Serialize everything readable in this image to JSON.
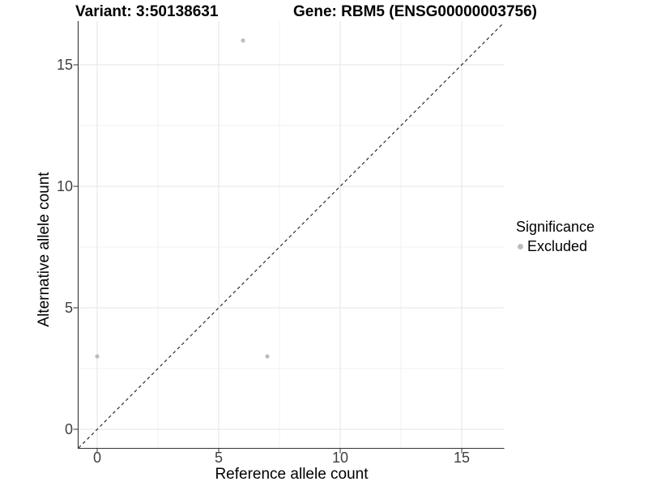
{
  "chart_data": {
    "type": "scatter",
    "title_left": "Variant: 3:50138631",
    "title_right": "Gene: RBM5 (ENSG00000003756)",
    "xlabel": "Reference allele count",
    "ylabel": "Alternative allele count",
    "xlim": [
      -0.8,
      16.8
    ],
    "ylim": [
      -0.8,
      16.8
    ],
    "x_major_ticks": [
      0,
      5,
      10,
      15
    ],
    "y_major_ticks": [
      0,
      5,
      10,
      15
    ],
    "x_minor_ticks": [
      2.5,
      7.5,
      12.5
    ],
    "y_minor_ticks": [
      2.5,
      7.5,
      12.5
    ],
    "grid": "major+minor",
    "legend_position": "right",
    "legend_title": "Significance",
    "series": [
      {
        "name": "Excluded",
        "color": "#bdbdbd",
        "marker": "circle",
        "points": [
          [
            0,
            3
          ],
          [
            6,
            16
          ],
          [
            7,
            3
          ]
        ]
      }
    ],
    "reference_line": {
      "type": "identity y=x",
      "style": "dashed",
      "color": "#1a1a1a"
    }
  },
  "colors": {
    "background": "#ffffff",
    "grid_major": "#e3e3e3",
    "grid_minor": "#f0f0f0",
    "axis_line": "#333333",
    "tick_mark": "#333333",
    "tick_text": "#404040",
    "title_text": "#000000",
    "point": "#bdbdbd"
  }
}
